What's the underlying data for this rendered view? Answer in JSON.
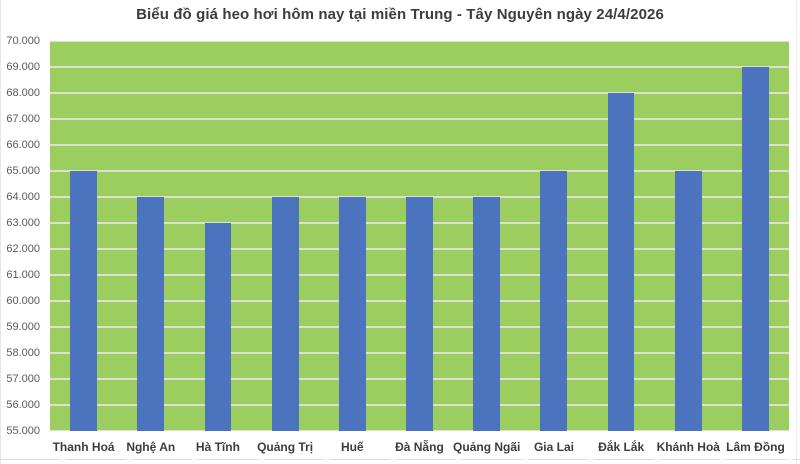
{
  "title": "Biểu đồ giá heo hơi hôm nay tại miền Trung - Tây Nguyên ngày 24/4/2026",
  "chart_data": {
    "type": "bar",
    "title": "Biểu đồ giá heo hơi hôm nay tại miền Trung - Tây Nguyên ngày 24/4/2026",
    "categories": [
      "Thanh Hoá",
      "Nghệ An",
      "Hà Tĩnh",
      "Quảng Trị",
      "Huế",
      "Đà Nẵng",
      "Quảng Ngãi",
      "Gia Lai",
      "Đắk Lắk",
      "Khánh Hoà",
      "Lâm Đồng"
    ],
    "values": [
      65000,
      64000,
      63000,
      64000,
      64000,
      64000,
      64000,
      65000,
      68000,
      65000,
      69000
    ],
    "xlabel": "",
    "ylabel": "",
    "ylim": [
      55000,
      70000
    ],
    "ytick_step": 1000,
    "ytick_labels": [
      "55.000",
      "56.000",
      "57.000",
      "58.000",
      "59.000",
      "60.000",
      "61.000",
      "62.000",
      "63.000",
      "64.000",
      "65.000",
      "66.000",
      "67.000",
      "68.000",
      "69.000",
      "70.000"
    ],
    "grid": true,
    "legend": "none",
    "bar_width_fraction": 0.4,
    "colors": {
      "bar": "#4C73BE",
      "plot_background": "#9BCE5F",
      "gridline": "#DBE0CF",
      "title_text": "#3D3D3D",
      "axis_text": "#595959",
      "category_text": "#3D3D3D",
      "page_background": "#FFFFFF"
    }
  }
}
